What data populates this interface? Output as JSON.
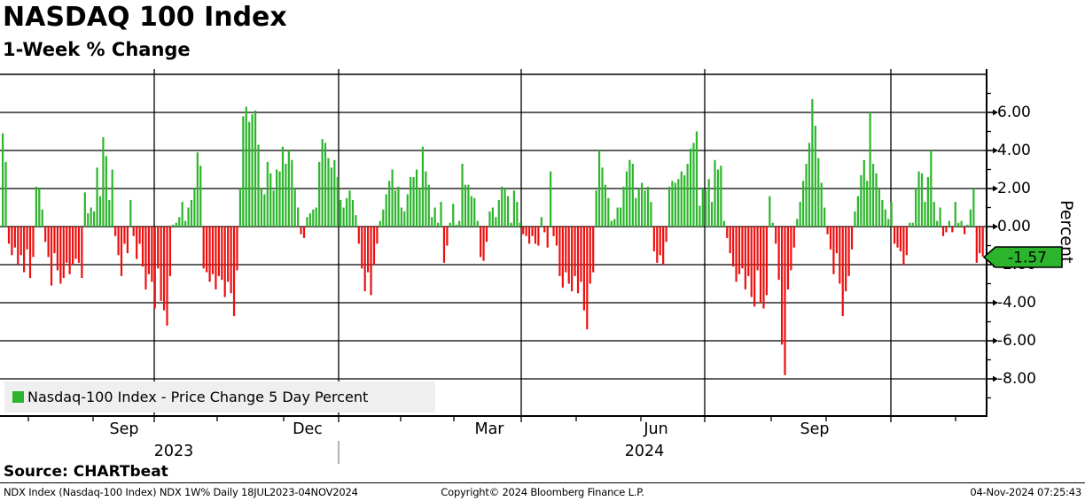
{
  "title": "NASDAQ 100 Index",
  "subtitle": "1-Week % Change",
  "legend": {
    "label": "Nasdaq-100 Index - Price Change 5 Day Percent",
    "swatch_color": "#2cb52c"
  },
  "last_value_badge": "-1.57",
  "y_axis": {
    "label": "Percent",
    "ticks": [
      "6.00",
      "4.00",
      "2.00",
      "0.00",
      "-2.00",
      "-4.00",
      "-6.00",
      "-8.00"
    ]
  },
  "x_axis": {
    "months": [
      {
        "label": "Sep",
        "x": 140
      },
      {
        "label": "Dec",
        "x": 347
      },
      {
        "label": "Mar",
        "x": 552
      },
      {
        "label": "Jun",
        "x": 740
      },
      {
        "label": "Sep",
        "x": 919
      }
    ],
    "years": [
      {
        "label": "2023",
        "x": 196
      },
      {
        "label": "2024",
        "x": 727
      }
    ]
  },
  "source": "Source: CHARTbeat",
  "footer": {
    "left": "NDX Index (Nasdaq-100 Index) NDX 1W%  Daily 18JUL2023-04NOV2024",
    "center": "Copyright© 2024 Bloomberg Finance L.P.",
    "right": "04-Nov-2024 07:25:43"
  },
  "chart_data": {
    "type": "bar",
    "title": "NASDAQ 100 Index",
    "subtitle": "1-Week % Change",
    "series_name": "Nasdaq-100 Index - Price Change 5 Day Percent",
    "x_range": [
      "18JUL2023",
      "04NOV2024"
    ],
    "frequency": "Daily",
    "ylabel": "Percent",
    "ylim": [
      -10,
      8
    ],
    "y_ticks": [
      6,
      4,
      2,
      0,
      -2,
      -4,
      -6,
      -8
    ],
    "quarter_gridlines": [
      "Oct 2023",
      "Jan 2024",
      "Apr 2024",
      "Jul 2024",
      "Oct 2024"
    ],
    "last_value": -1.57,
    "positive_color": "#2cb52c",
    "negative_color": "#ee0e0e",
    "legend_position": "bottom-left",
    "grid": true,
    "values": [
      4.9,
      3.4,
      -0.9,
      -1.5,
      -1.1,
      -2.0,
      -1.5,
      -2.4,
      -1.2,
      -2.7,
      -1.6,
      2.1,
      2.0,
      0.9,
      -0.8,
      -1.6,
      -3.1,
      -1.4,
      -2.3,
      -3.0,
      -2.7,
      -1.9,
      -2.5,
      -2.0,
      -1.7,
      -1.9,
      -2.7,
      1.8,
      0.7,
      1.0,
      0.8,
      3.1,
      1.6,
      4.7,
      3.7,
      1.4,
      3.0,
      -0.5,
      -1.5,
      -2.6,
      -0.9,
      -1.4,
      1.4,
      -0.5,
      -1.7,
      -0.9,
      -2.1,
      -3.3,
      -2.5,
      -2.9,
      -4.3,
      -2.2,
      -3.9,
      -4.4,
      -5.2,
      -2.6,
      0.1,
      0.2,
      0.5,
      1.3,
      0.3,
      1.0,
      1.4,
      2.0,
      3.9,
      3.2,
      -2.2,
      -2.4,
      -2.9,
      -2.5,
      -3.3,
      -2.6,
      -2.8,
      -3.7,
      -2.9,
      -3.5,
      -4.7,
      -2.3,
      2.0,
      5.8,
      6.3,
      5.5,
      5.9,
      6.1,
      4.3,
      2.0,
      1.7,
      3.4,
      2.8,
      1.9,
      3.0,
      2.9,
      4.2,
      3.3,
      4.0,
      3.5,
      2.0,
      1.0,
      -0.4,
      -0.6,
      0.5,
      0.7,
      0.9,
      1.0,
      3.4,
      4.6,
      4.4,
      3.6,
      3.1,
      3.5,
      2.6,
      1.4,
      1.0,
      1.5,
      1.9,
      1.4,
      0.6,
      -0.9,
      -2.2,
      -3.4,
      -2.4,
      -3.6,
      -2.0,
      -0.9,
      0.3,
      0.9,
      1.7,
      2.4,
      3.0,
      1.9,
      2.1,
      1.0,
      0.8,
      1.7,
      2.6,
      2.6,
      3.0,
      2.0,
      4.2,
      2.9,
      2.2,
      0.5,
      1.0,
      0.2,
      1.3,
      -1.9,
      -1.0,
      0.2,
      1.2,
      0.1,
      0.3,
      3.3,
      2.2,
      2.2,
      1.6,
      1.5,
      0.3,
      -1.6,
      -1.8,
      -0.8,
      0.8,
      1.0,
      0.5,
      1.4,
      2.1,
      2.0,
      1.6,
      0.2,
      1.9,
      1.3,
      0.2,
      -0.4,
      -0.5,
      -0.9,
      -0.5,
      -0.9,
      -1.0,
      0.5,
      -0.3,
      -1.1,
      2.9,
      -0.5,
      -1.0,
      -2.6,
      -3.2,
      -2.4,
      -3.0,
      -3.4,
      -2.6,
      -3.5,
      -2.9,
      -4.4,
      -5.4,
      -3.0,
      -2.4,
      1.9,
      4.0,
      3.1,
      2.2,
      1.5,
      0.3,
      0.4,
      1.0,
      1.0,
      2.1,
      2.9,
      3.5,
      3.3,
      1.5,
      2.0,
      2.3,
      1.9,
      2.1,
      1.3,
      -1.3,
      -1.9,
      -1.5,
      -2.0,
      -0.8,
      2.1,
      2.4,
      2.3,
      2.5,
      2.9,
      2.7,
      3.3,
      4.1,
      4.4,
      5.0,
      1.1,
      2.0,
      1.9,
      2.5,
      1.3,
      3.5,
      3.0,
      3.2,
      0.3,
      -0.6,
      -1.4,
      -2.1,
      -2.9,
      -2.5,
      -2.2,
      -3.3,
      -2.6,
      -3.7,
      -4.2,
      -2.3,
      -4.0,
      -4.3,
      -3.6,
      1.6,
      0.2,
      -0.9,
      -2.8,
      -6.2,
      -7.8,
      -3.3,
      -2.3,
      -1.1,
      0.4,
      1.3,
      2.4,
      3.3,
      4.4,
      6.7,
      5.3,
      3.6,
      2.3,
      1.0,
      -0.4,
      -1.2,
      -2.5,
      -1.4,
      -3.0,
      -4.7,
      -3.4,
      -2.6,
      -1.2,
      0.8,
      1.6,
      2.7,
      3.5,
      2.4,
      6.0,
      3.3,
      2.8,
      2.0,
      1.4,
      0.9,
      0.4,
      1.3,
      -0.9,
      -1.1,
      -1.3,
      -2.0,
      -1.5,
      0.2,
      0.2,
      2.0,
      2.9,
      2.8,
      1.3,
      2.6,
      4.0,
      1.3,
      0.3,
      1.0,
      -0.5,
      -0.3,
      0.3,
      -0.3,
      1.3,
      0.2,
      0.3,
      -0.4,
      0.1,
      0.9,
      2.0,
      -1.9,
      -1.4,
      -1.57
    ]
  }
}
